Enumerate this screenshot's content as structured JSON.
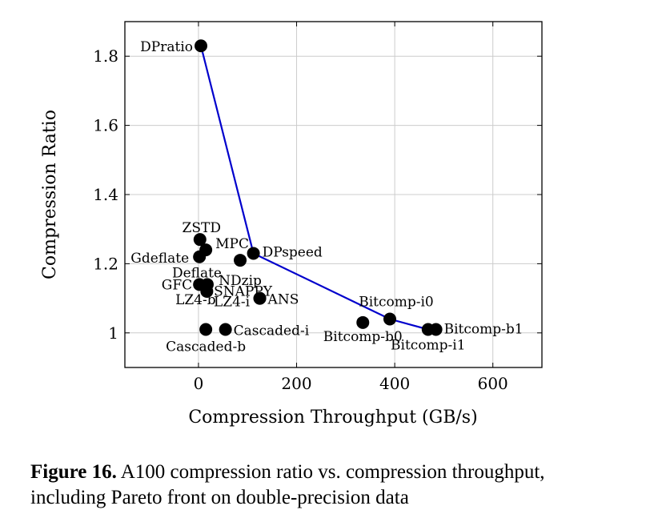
{
  "chart_data": {
    "type": "scatter",
    "xlabel": "Compression Throughput (GB/s)",
    "ylabel": "Compression Ratio",
    "xlim": [
      -150,
      700
    ],
    "ylim": [
      0.9,
      1.9
    ],
    "xticks": [
      0,
      200,
      400,
      600
    ],
    "yticks": [
      1,
      1.2,
      1.4,
      1.6,
      1.8
    ],
    "ytick_labels": [
      "1",
      "1.2",
      "1.4",
      "1.6",
      "1.8"
    ],
    "grid": true,
    "marker_color": "#000000",
    "front_color": "#0000cc",
    "points": [
      {
        "name": "DPratio",
        "x": 5,
        "y": 1.83
      },
      {
        "name": "ZSTD",
        "x": 3,
        "y": 1.27
      },
      {
        "name": "MPC",
        "x": 15,
        "y": 1.24
      },
      {
        "name": "Gdeflate",
        "x": 2,
        "y": 1.22
      },
      {
        "name": "NDzip",
        "x": 85,
        "y": 1.21
      },
      {
        "name": "DPspeed",
        "x": 112,
        "y": 1.23
      },
      {
        "name": "Deflate",
        "x": 18,
        "y": 1.14
      },
      {
        "name": "GFC",
        "x": 2,
        "y": 1.14
      },
      {
        "name": "SNAPPY",
        "x": 15,
        "y": 1.135
      },
      {
        "name": "LZ4-b",
        "x": 17,
        "y": 1.12
      },
      {
        "name": "LZ4-i",
        "x": 125,
        "y": 1.1
      },
      {
        "name": "ANS",
        "x": 125,
        "y": 1.1
      },
      {
        "name": "Cascaded-b",
        "x": 15,
        "y": 1.01
      },
      {
        "name": "Cascaded-i",
        "x": 55,
        "y": 1.01
      },
      {
        "name": "Bitcomp-b0",
        "x": 335,
        "y": 1.03
      },
      {
        "name": "Bitcomp-i0",
        "x": 390,
        "y": 1.04
      },
      {
        "name": "Bitcomp-i1",
        "x": 468,
        "y": 1.01
      },
      {
        "name": "Bitcomp-b1",
        "x": 484,
        "y": 1.01
      }
    ],
    "pareto_front": [
      {
        "x": 5,
        "y": 1.83
      },
      {
        "x": 112,
        "y": 1.23
      },
      {
        "x": 390,
        "y": 1.04
      },
      {
        "x": 468,
        "y": 1.01
      },
      {
        "x": 484,
        "y": 1.01
      }
    ]
  },
  "caption": {
    "label": "Figure 16.",
    "text": " A100 compression ratio vs. compression throughput, including Pareto front on double-precision data"
  }
}
